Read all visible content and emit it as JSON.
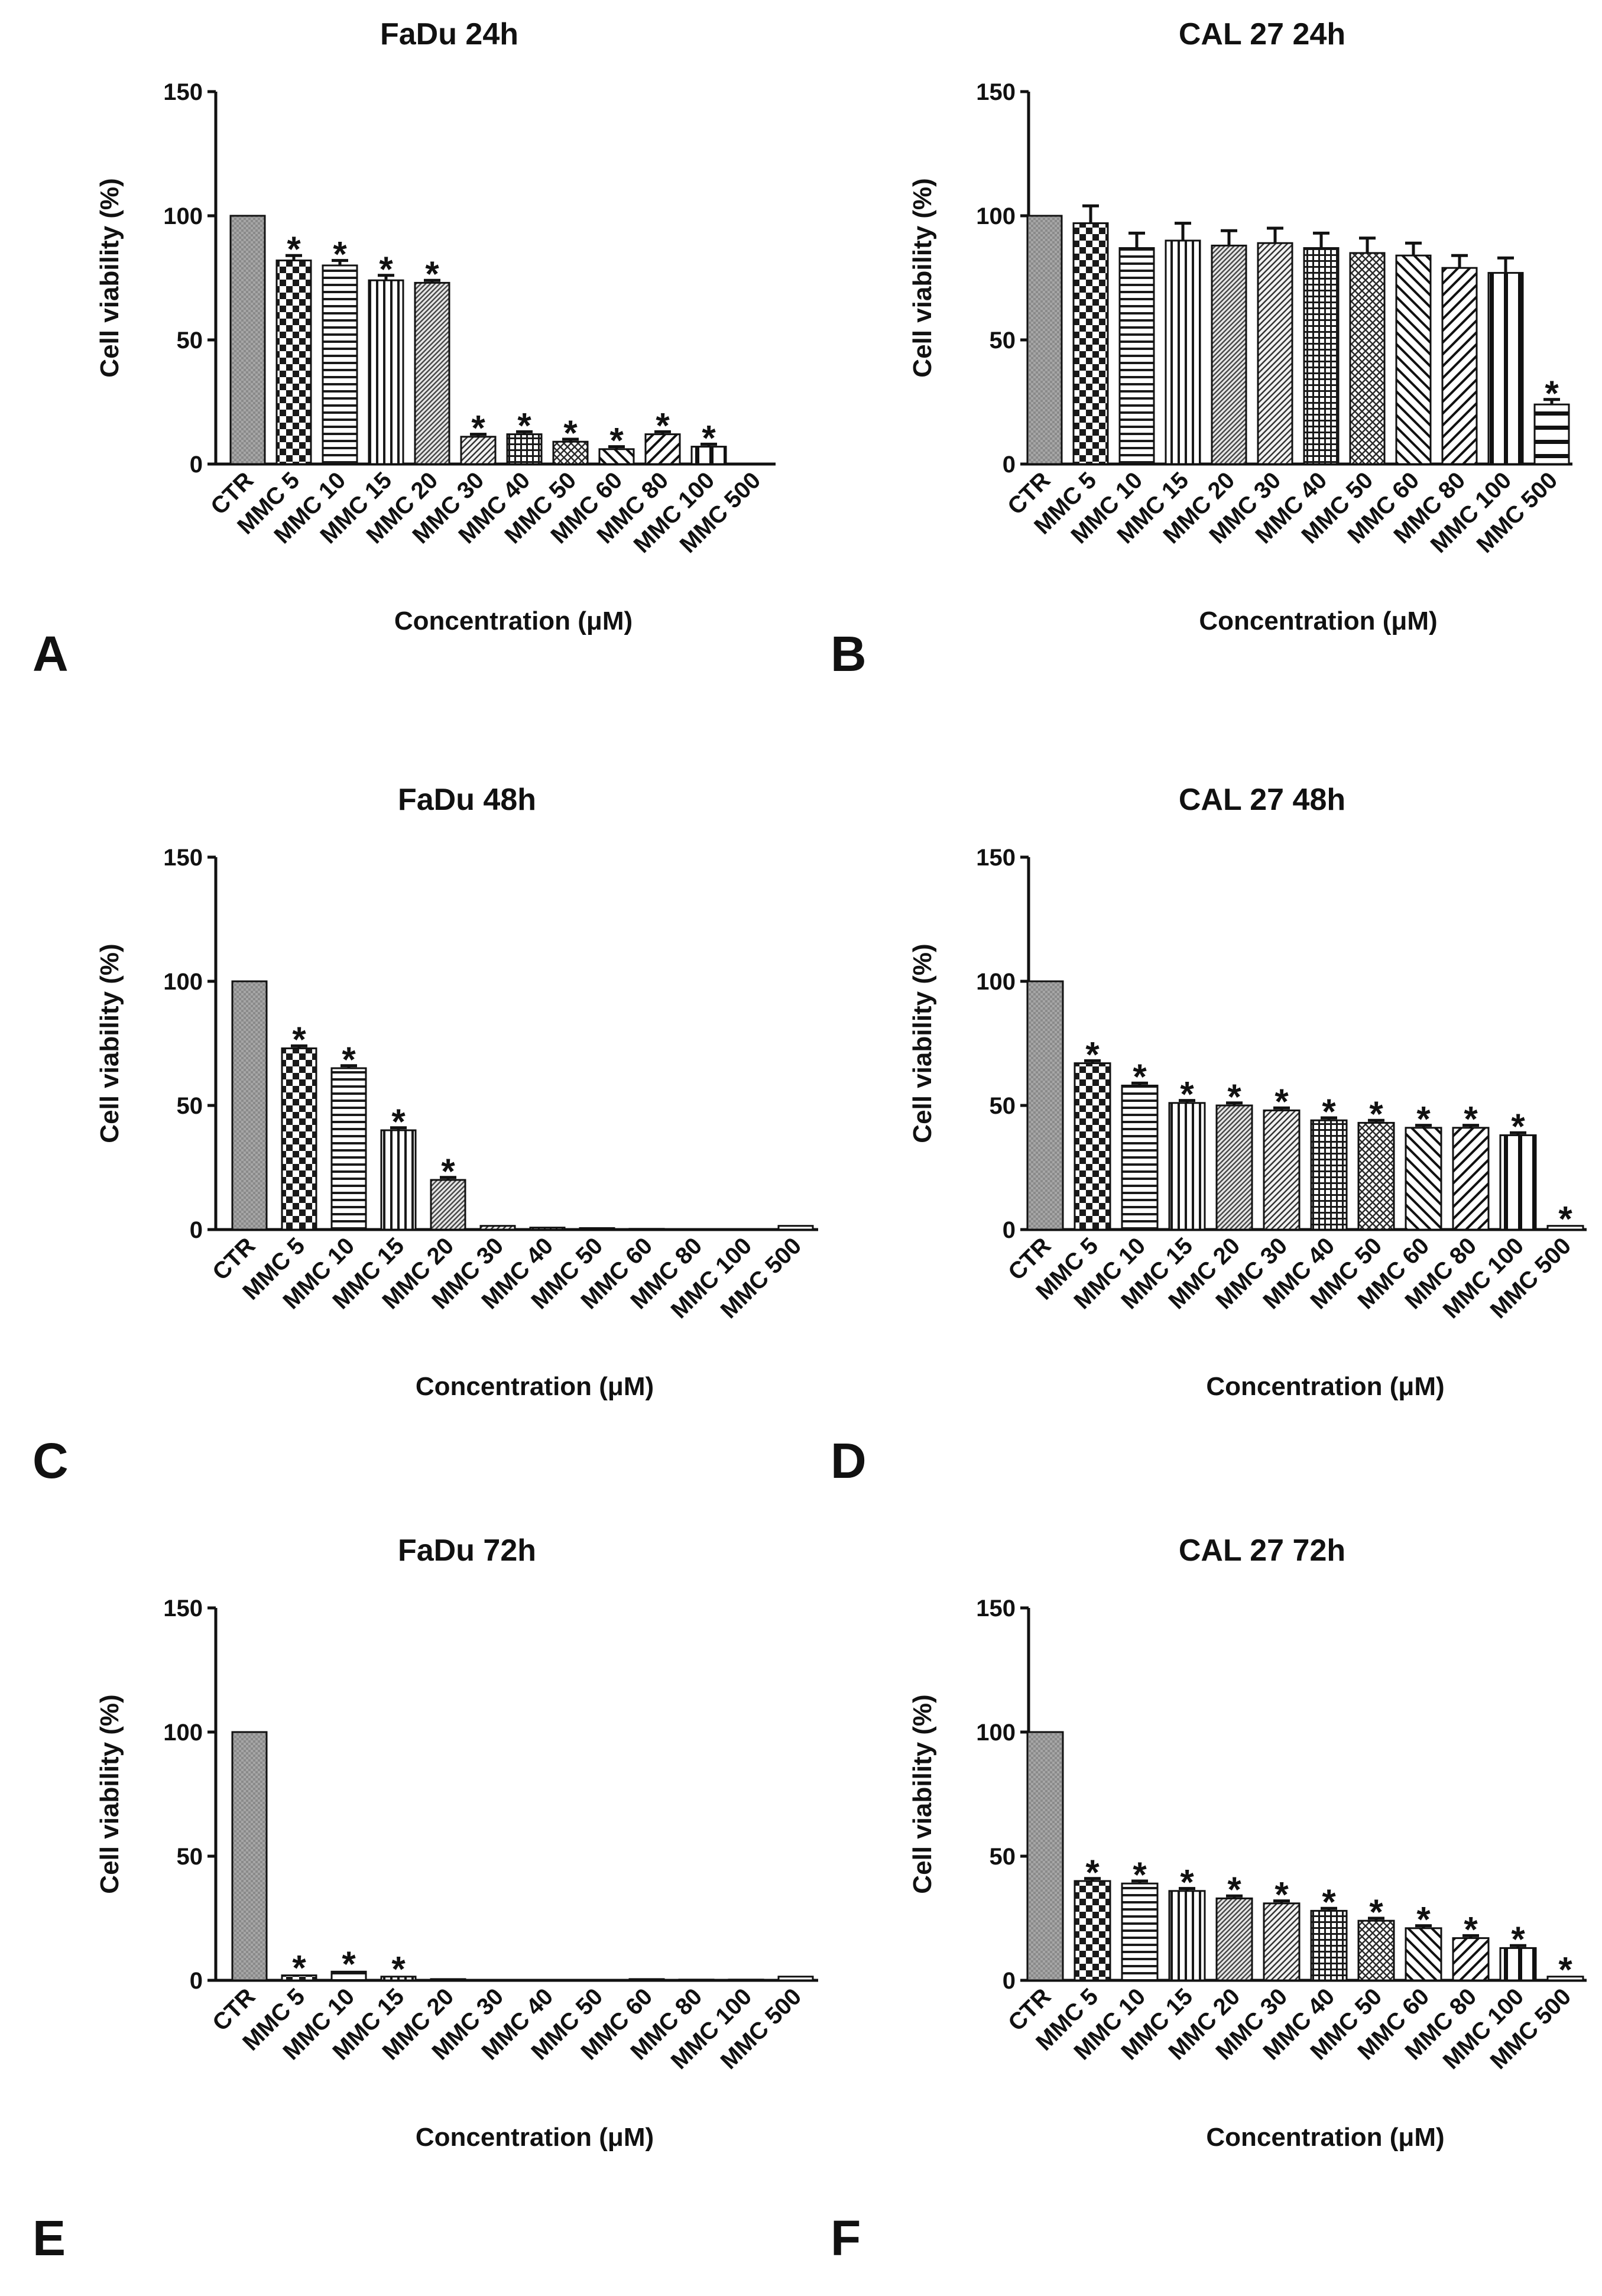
{
  "chart_data": [
    {
      "panel": "A",
      "type": "bar",
      "title": "FaDu 24h",
      "xlabel": "Concentration (μM)",
      "ylabel": "Cell viability (%)",
      "ylim": [
        0,
        150
      ],
      "yticks": [
        "0",
        "50",
        "100",
        "150"
      ],
      "categories": [
        "CTR",
        "MMC 5",
        "MMC 10",
        "MMC 15",
        "MMC 20",
        "MMC 30",
        "MMC 40",
        "MMC 50",
        "MMC 60",
        "MMC 80",
        "MMC 100",
        "MMC 500"
      ],
      "values": [
        100,
        82,
        80,
        74,
        73,
        11,
        12,
        9,
        6,
        12,
        7,
        0
      ],
      "errors": [
        0,
        2,
        2,
        2,
        1,
        1,
        1,
        1,
        1,
        1,
        1,
        0
      ],
      "significant": [
        "",
        "*",
        "*",
        "*",
        "*",
        "*",
        "*",
        "*",
        "*",
        "*",
        "*",
        ""
      ]
    },
    {
      "panel": "B",
      "type": "bar",
      "title": "CAL 27 24h",
      "xlabel": "Concentration (μM)",
      "ylabel": "Cell viability (%)",
      "ylim": [
        0,
        150
      ],
      "yticks": [
        "0",
        "50",
        "100",
        "150"
      ],
      "categories": [
        "CTR",
        "MMC 5",
        "MMC 10",
        "MMC 15",
        "MMC 20",
        "MMC 30",
        "MMC 40",
        "MMC 50",
        "MMC 60",
        "MMC 80",
        "MMC 100",
        "MMC 500"
      ],
      "values": [
        100,
        97,
        87,
        90,
        88,
        89,
        87,
        85,
        84,
        79,
        77,
        24
      ],
      "errors": [
        0,
        7,
        6,
        7,
        6,
        6,
        6,
        6,
        5,
        5,
        6,
        2
      ],
      "significant": [
        "",
        "",
        "",
        "",
        "",
        "",
        "",
        "",
        "",
        "",
        "",
        "*"
      ]
    },
    {
      "panel": "C",
      "type": "bar",
      "title": "FaDu 48h",
      "xlabel": "Concentration (μM)",
      "ylabel": "Cell viability (%)",
      "ylim": [
        0,
        150
      ],
      "yticks": [
        "0",
        "50",
        "100",
        "150"
      ],
      "categories": [
        "CTR",
        "MMC 5",
        "MMC 10",
        "MMC 15",
        "MMC 20",
        "MMC 30",
        "MMC 40",
        "MMC 50",
        "MMC 60",
        "MMC 80",
        "MMC 100",
        "MMC 500"
      ],
      "values": [
        100,
        73,
        65,
        40,
        20,
        1.5,
        0.8,
        0.6,
        0.3,
        0.2,
        0.2,
        1.5
      ],
      "errors": [
        0,
        1,
        1,
        1,
        1,
        0.3,
        0.2,
        0.2,
        0.1,
        0.1,
        0.1,
        0.3
      ],
      "significant": [
        "",
        "*",
        "*",
        "*",
        "*",
        "",
        "",
        "",
        "",
        "",
        "",
        ""
      ]
    },
    {
      "panel": "D",
      "type": "bar",
      "title": "CAL 27 48h",
      "xlabel": "Concentration (μM)",
      "ylabel": "Cell viability (%)",
      "ylim": [
        0,
        150
      ],
      "yticks": [
        "0",
        "50",
        "100",
        "150"
      ],
      "categories": [
        "CTR",
        "MMC 5",
        "MMC 10",
        "MMC 15",
        "MMC 20",
        "MMC 30",
        "MMC 40",
        "MMC 50",
        "MMC 60",
        "MMC 80",
        "MMC 100",
        "MMC 500"
      ],
      "values": [
        100,
        67,
        58,
        51,
        50,
        48,
        44,
        43,
        41,
        41,
        38,
        1.5
      ],
      "errors": [
        0,
        1,
        1,
        1,
        1,
        1,
        1,
        1,
        1,
        1,
        1,
        0.3
      ],
      "significant": [
        "",
        "*",
        "*",
        "*",
        "*",
        "*",
        "*",
        "*",
        "*",
        "*",
        "*",
        "*"
      ]
    },
    {
      "panel": "E",
      "type": "bar",
      "title": "FaDu 72h",
      "xlabel": "Concentration (μM)",
      "ylabel": "Cell viability (%)",
      "ylim": [
        0,
        150
      ],
      "yticks": [
        "0",
        "50",
        "100",
        "150"
      ],
      "categories": [
        "CTR",
        "MMC 5",
        "MMC 10",
        "MMC 15",
        "MMC 20",
        "MMC 30",
        "MMC 40",
        "MMC 50",
        "MMC 60",
        "MMC 80",
        "MMC 100",
        "MMC 500"
      ],
      "values": [
        100,
        2,
        3.5,
        1.5,
        0.5,
        0.2,
        0.2,
        0.2,
        0.5,
        0.3,
        0.3,
        1.5
      ],
      "errors": [
        0,
        0.5,
        0.5,
        0.5,
        0.1,
        0.1,
        0.1,
        0.1,
        0.1,
        0.1,
        0.1,
        0.3
      ],
      "significant": [
        "",
        "*",
        "*",
        "*",
        "",
        "",
        "",
        "",
        "",
        "",
        "",
        ""
      ]
    },
    {
      "panel": "F",
      "type": "bar",
      "title": "CAL 27 72h",
      "xlabel": "Concentration (μM)",
      "ylabel": "Cell viability (%)",
      "ylim": [
        0,
        150
      ],
      "yticks": [
        "0",
        "50",
        "100",
        "150"
      ],
      "categories": [
        "CTR",
        "MMC 5",
        "MMC 10",
        "MMC 15",
        "MMC 20",
        "MMC 30",
        "MMC 40",
        "MMC 50",
        "MMC 60",
        "MMC 80",
        "MMC 100",
        "MMC 500"
      ],
      "values": [
        100,
        40,
        39,
        36,
        33,
        31,
        28,
        24,
        21,
        17,
        13,
        1.5
      ],
      "errors": [
        0,
        1,
        1,
        1,
        1,
        1,
        1,
        1,
        1,
        1,
        1,
        0.3
      ],
      "significant": [
        "",
        "*",
        "*",
        "*",
        "*",
        "*",
        "*",
        "*",
        "*",
        "*",
        "*",
        "*"
      ]
    }
  ]
}
